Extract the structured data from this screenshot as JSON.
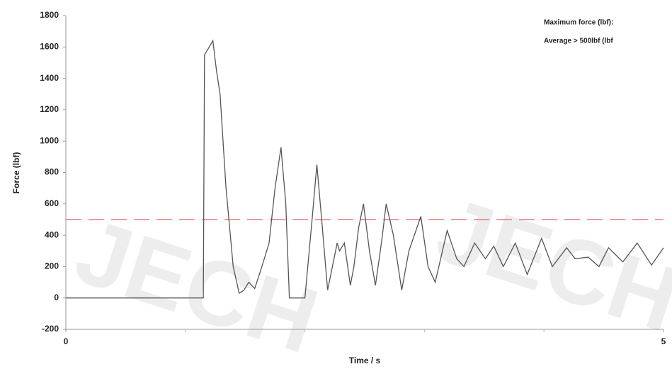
{
  "chart_data": {
    "type": "line",
    "watermark": "JECH",
    "xlabel": "Time / s",
    "ylabel": "Force (lbf)",
    "annotations": [
      "Maximum force (lbf):",
      "Average > 500lbf (lbf"
    ],
    "xlim": [
      0,
      5
    ],
    "xticks": [
      0,
      5
    ],
    "x_minor_ticks": [
      1,
      2,
      3,
      4
    ],
    "ylim": [
      -200,
      1800
    ],
    "yticks": [
      -200,
      0,
      200,
      400,
      600,
      800,
      1000,
      1200,
      1400,
      1600,
      1800
    ],
    "reference_line": {
      "value": 500,
      "color": "#e07b7b"
    },
    "series": [
      {
        "name": "Force",
        "color": "#555555",
        "x": [
          0,
          1.15,
          1.16,
          1.2,
          1.23,
          1.26,
          1.29,
          1.34,
          1.4,
          1.45,
          1.49,
          1.53,
          1.58,
          1.64,
          1.7,
          1.75,
          1.8,
          1.84,
          1.87,
          2.0,
          2.06,
          2.1,
          2.14,
          2.19,
          2.23,
          2.27,
          2.29,
          2.33,
          2.38,
          2.41,
          2.45,
          2.49,
          2.54,
          2.59,
          2.64,
          2.68,
          2.74,
          2.81,
          2.87,
          2.97,
          3.03,
          3.09,
          3.19,
          3.27,
          3.33,
          3.42,
          3.51,
          3.58,
          3.66,
          3.76,
          3.86,
          3.98,
          4.07,
          4.19,
          4.26,
          4.37,
          4.46,
          4.54,
          4.66,
          4.78,
          4.9,
          5.0
        ],
        "values": [
          0,
          0,
          1550,
          1600,
          1640,
          1450,
          1300,
          700,
          200,
          30,
          50,
          100,
          60,
          200,
          350,
          700,
          960,
          600,
          0,
          0,
          500,
          850,
          500,
          50,
          200,
          350,
          300,
          350,
          80,
          200,
          450,
          600,
          300,
          80,
          350,
          600,
          400,
          50,
          300,
          520,
          200,
          100,
          430,
          250,
          200,
          350,
          250,
          330,
          200,
          350,
          150,
          380,
          200,
          320,
          250,
          260,
          200,
          320,
          230,
          350,
          210,
          320
        ]
      }
    ]
  }
}
